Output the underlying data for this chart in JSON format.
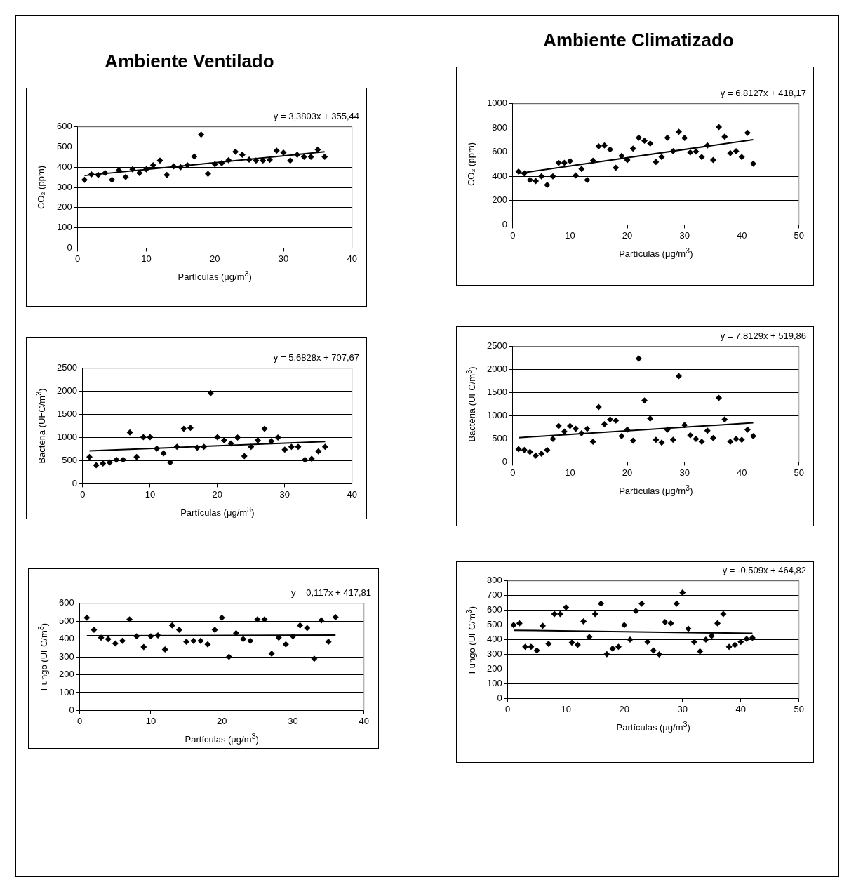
{
  "chart_data": [
    {
      "type": "scatter",
      "title": "Ambiente Ventilado",
      "xlabel": "Partículas (μg/m$^{3}$)",
      "ylabel": "CO₂ (ppm)",
      "annotations": [
        "y = 3,3803x + 355,44"
      ],
      "xlim": [
        0,
        40
      ],
      "xticks": [
        0,
        10,
        20,
        30,
        40
      ],
      "ylim": [
        0,
        600
      ],
      "yticks": [
        0,
        100,
        200,
        300,
        400,
        500,
        600
      ],
      "grid": "y",
      "series": [
        {
          "type": "scatter",
          "marker": "diamond",
          "color": "#000000",
          "x": [
            1,
            2,
            3,
            4,
            5,
            6,
            7,
            8,
            9,
            10,
            11,
            12,
            13,
            14,
            15,
            16,
            17,
            18,
            19,
            20,
            21,
            22,
            23,
            24,
            25,
            26,
            27,
            28,
            29,
            30,
            31,
            32,
            33,
            34,
            35,
            36
          ],
          "values": [
            338,
            365,
            362,
            372,
            338,
            385,
            352,
            390,
            372,
            390,
            410,
            433,
            362,
            405,
            400,
            410,
            453,
            562,
            367,
            415,
            420,
            435,
            477,
            462,
            438,
            433,
            433,
            437,
            482,
            472,
            433,
            462,
            452,
            452,
            487,
            452
          ]
        },
        {
          "type": "line",
          "color": "#000000",
          "x": [
            1,
            36
          ],
          "values": [
            359,
            477
          ]
        }
      ]
    },
    {
      "type": "scatter",
      "title": "Ambiente Climatizado",
      "xlabel": "Partículas (μg/m$^{3}$)",
      "ylabel": "CO₂ (ppm)",
      "annotations": [
        "y = 6,8127x + 418,17"
      ],
      "xlim": [
        0,
        50
      ],
      "xticks": [
        0,
        10,
        20,
        30,
        40,
        50
      ],
      "ylim": [
        0,
        1000
      ],
      "yticks": [
        0,
        200,
        400,
        600,
        800,
        1000
      ],
      "grid": "y",
      "series": [
        {
          "type": "scatter",
          "marker": "diamond",
          "color": "#000000",
          "x": [
            1,
            2,
            3,
            4,
            5,
            6,
            7,
            8,
            9,
            10,
            11,
            12,
            13,
            14,
            15,
            16,
            17,
            18,
            19,
            20,
            21,
            22,
            23,
            24,
            25,
            26,
            27,
            28,
            29,
            30,
            31,
            32,
            33,
            34,
            35,
            36,
            37,
            38,
            39,
            40,
            41,
            42
          ],
          "values": [
            440,
            425,
            370,
            362,
            400,
            330,
            400,
            512,
            512,
            527,
            408,
            462,
            370,
            530,
            648,
            655,
            622,
            472,
            568,
            535,
            630,
            720,
            695,
            672,
            520,
            560,
            720,
            608,
            768,
            718,
            598,
            605,
            560,
            655,
            535,
            808,
            728,
            592,
            608,
            560,
            760,
            505
          ]
        },
        {
          "type": "line",
          "color": "#000000",
          "x": [
            1,
            42
          ],
          "values": [
            425,
            704
          ]
        }
      ]
    },
    {
      "type": "scatter",
      "xlabel": "Partículas (μg/m$^{3}$)",
      "ylabel": "Bactéria (UFC/m$^{3}$)",
      "annotations": [
        "y = 5,6828x + 707,67"
      ],
      "xlim": [
        0,
        40
      ],
      "xticks": [
        0,
        10,
        20,
        30,
        40
      ],
      "ylim": [
        0,
        2500
      ],
      "yticks": [
        0,
        500,
        1000,
        1500,
        2000,
        2500
      ],
      "grid": "y",
      "series": [
        {
          "type": "scatter",
          "marker": "diamond",
          "color": "#000000",
          "x": [
            1,
            2,
            3,
            4,
            5,
            6,
            7,
            8,
            9,
            10,
            11,
            12,
            13,
            14,
            15,
            16,
            17,
            18,
            19,
            20,
            21,
            22,
            23,
            24,
            25,
            26,
            27,
            28,
            29,
            30,
            31,
            32,
            33,
            34,
            35,
            36
          ],
          "values": [
            580,
            400,
            440,
            460,
            520,
            520,
            1110,
            580,
            1010,
            1010,
            760,
            660,
            460,
            800,
            1190,
            1210,
            780,
            800,
            1960,
            1010,
            940,
            870,
            1000,
            600,
            800,
            940,
            1190,
            920,
            1000,
            740,
            800,
            800,
            520,
            540,
            700,
            800
          ]
        },
        {
          "type": "line",
          "color": "#000000",
          "x": [
            1,
            36
          ],
          "values": [
            713,
            912
          ]
        }
      ]
    },
    {
      "type": "scatter",
      "xlabel": "Partículas (μg/m$^{3}$)",
      "ylabel": "Bactéria (UFC/m$^{3}$)",
      "annotations": [
        "y = 7,8129x + 519,86"
      ],
      "xlim": [
        0,
        50
      ],
      "xticks": [
        0,
        10,
        20,
        30,
        40,
        50
      ],
      "ylim": [
        0,
        2500
      ],
      "yticks": [
        0,
        500,
        1000,
        1500,
        2000,
        2500
      ],
      "grid": "y",
      "series": [
        {
          "type": "scatter",
          "marker": "diamond",
          "color": "#000000",
          "x": [
            1,
            2,
            3,
            4,
            5,
            6,
            7,
            8,
            9,
            10,
            11,
            12,
            13,
            14,
            15,
            16,
            17,
            18,
            19,
            20,
            21,
            22,
            23,
            24,
            25,
            26,
            27,
            28,
            29,
            30,
            31,
            32,
            33,
            34,
            35,
            36,
            37,
            38,
            39,
            40,
            41,
            42
          ],
          "values": [
            280,
            260,
            220,
            140,
            180,
            260,
            500,
            780,
            660,
            780,
            720,
            620,
            720,
            440,
            1190,
            820,
            920,
            900,
            560,
            700,
            460,
            2240,
            1330,
            940,
            480,
            420,
            700,
            480,
            1860,
            800,
            580,
            500,
            440,
            680,
            520,
            1390,
            920,
            440,
            500,
            480,
            700,
            560
          ]
        },
        {
          "type": "line",
          "color": "#000000",
          "x": [
            1,
            42
          ],
          "values": [
            528,
            848
          ]
        }
      ]
    },
    {
      "type": "scatter",
      "xlabel": "Partículas (μg/m$^{3}$)",
      "ylabel": "Fungo (UFC/m$^{3}$)",
      "annotations": [
        "y = 0,117x + 417,81"
      ],
      "xlim": [
        0,
        40
      ],
      "xticks": [
        0,
        10,
        20,
        30,
        40
      ],
      "ylim": [
        0,
        600
      ],
      "yticks": [
        0,
        100,
        200,
        300,
        400,
        500,
        600
      ],
      "grid": "y",
      "series": [
        {
          "type": "scatter",
          "marker": "diamond",
          "color": "#000000",
          "x": [
            1,
            2,
            3,
            4,
            5,
            6,
            7,
            8,
            9,
            10,
            11,
            12,
            13,
            14,
            15,
            16,
            17,
            18,
            19,
            20,
            21,
            22,
            23,
            24,
            25,
            26,
            27,
            28,
            29,
            30,
            31,
            32,
            33,
            34,
            35,
            36
          ],
          "values": [
            520,
            452,
            408,
            400,
            375,
            390,
            510,
            415,
            355,
            415,
            420,
            342,
            476,
            452,
            385,
            390,
            390,
            370,
            452,
            520,
            300,
            433,
            400,
            390,
            510,
            510,
            318,
            408,
            370,
            415,
            476,
            462,
            290,
            505,
            385,
            523
          ]
        },
        {
          "type": "line",
          "color": "#000000",
          "x": [
            1,
            36
          ],
          "values": [
            418,
            422
          ]
        }
      ]
    },
    {
      "type": "scatter",
      "xlabel": "Partículas (μg/m$^{3}$)",
      "ylabel": "Fungo (UFC/m$^{3}$)",
      "annotations": [
        "y = -0,509x + 464,82"
      ],
      "xlim": [
        0,
        50
      ],
      "xticks": [
        0,
        10,
        20,
        30,
        40,
        50
      ],
      "ylim": [
        0,
        800
      ],
      "yticks": [
        0,
        100,
        200,
        300,
        400,
        500,
        600,
        700,
        800
      ],
      "grid": "y",
      "series": [
        {
          "type": "scatter",
          "marker": "diamond",
          "color": "#000000",
          "x": [
            1,
            2,
            3,
            4,
            5,
            6,
            7,
            8,
            9,
            10,
            11,
            12,
            13,
            14,
            15,
            16,
            17,
            18,
            19,
            20,
            21,
            22,
            23,
            24,
            25,
            26,
            27,
            28,
            29,
            30,
            31,
            32,
            33,
            34,
            35,
            36,
            37,
            38,
            39,
            40,
            41,
            42
          ],
          "values": [
            500,
            512,
            352,
            352,
            327,
            495,
            372,
            575,
            575,
            620,
            380,
            365,
            525,
            418,
            575,
            645,
            302,
            340,
            352,
            500,
            400,
            595,
            645,
            385,
            327,
            300,
            520,
            512,
            645,
            720,
            475,
            385,
            320,
            400,
            425,
            512,
            575,
            352,
            365,
            385,
            405,
            412
          ]
        },
        {
          "type": "line",
          "color": "#000000",
          "x": [
            1,
            42
          ],
          "values": [
            464,
            443
          ]
        }
      ]
    }
  ]
}
